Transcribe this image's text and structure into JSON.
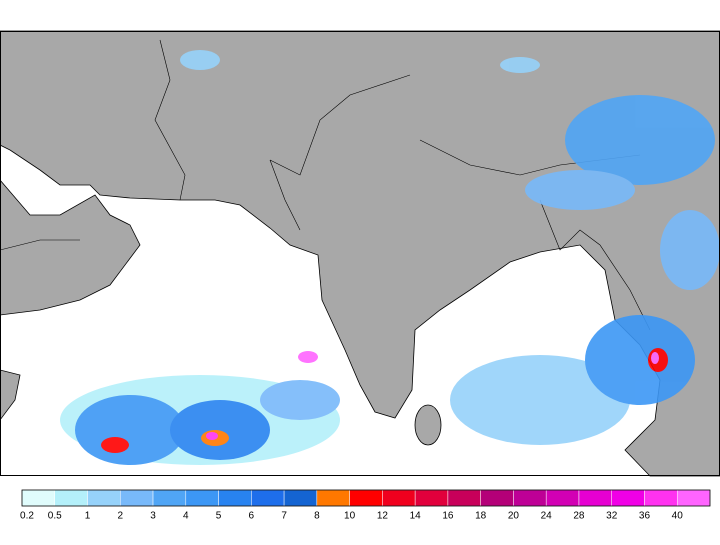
{
  "colorbar": {
    "labels": [
      0.2,
      0.5,
      1,
      2,
      3,
      4,
      5,
      6,
      7,
      8,
      10,
      12,
      14,
      16,
      18,
      20,
      24,
      28,
      32,
      36,
      40
    ],
    "colors": [
      "#e0fcfc",
      "#b4f0fa",
      "#96d2fa",
      "#78b9fa",
      "#50a5f5",
      "#3c97f5",
      "#2883f0",
      "#1e6eeb",
      "#1464d2",
      "#ff7800",
      "#ff0000",
      "#f0001e",
      "#e1003c",
      "#c8005a",
      "#b40078",
      "#be0096",
      "#d200b4",
      "#e600d2",
      "#f000e6",
      "#ff32f0",
      "#ff64ff"
    ]
  }
}
